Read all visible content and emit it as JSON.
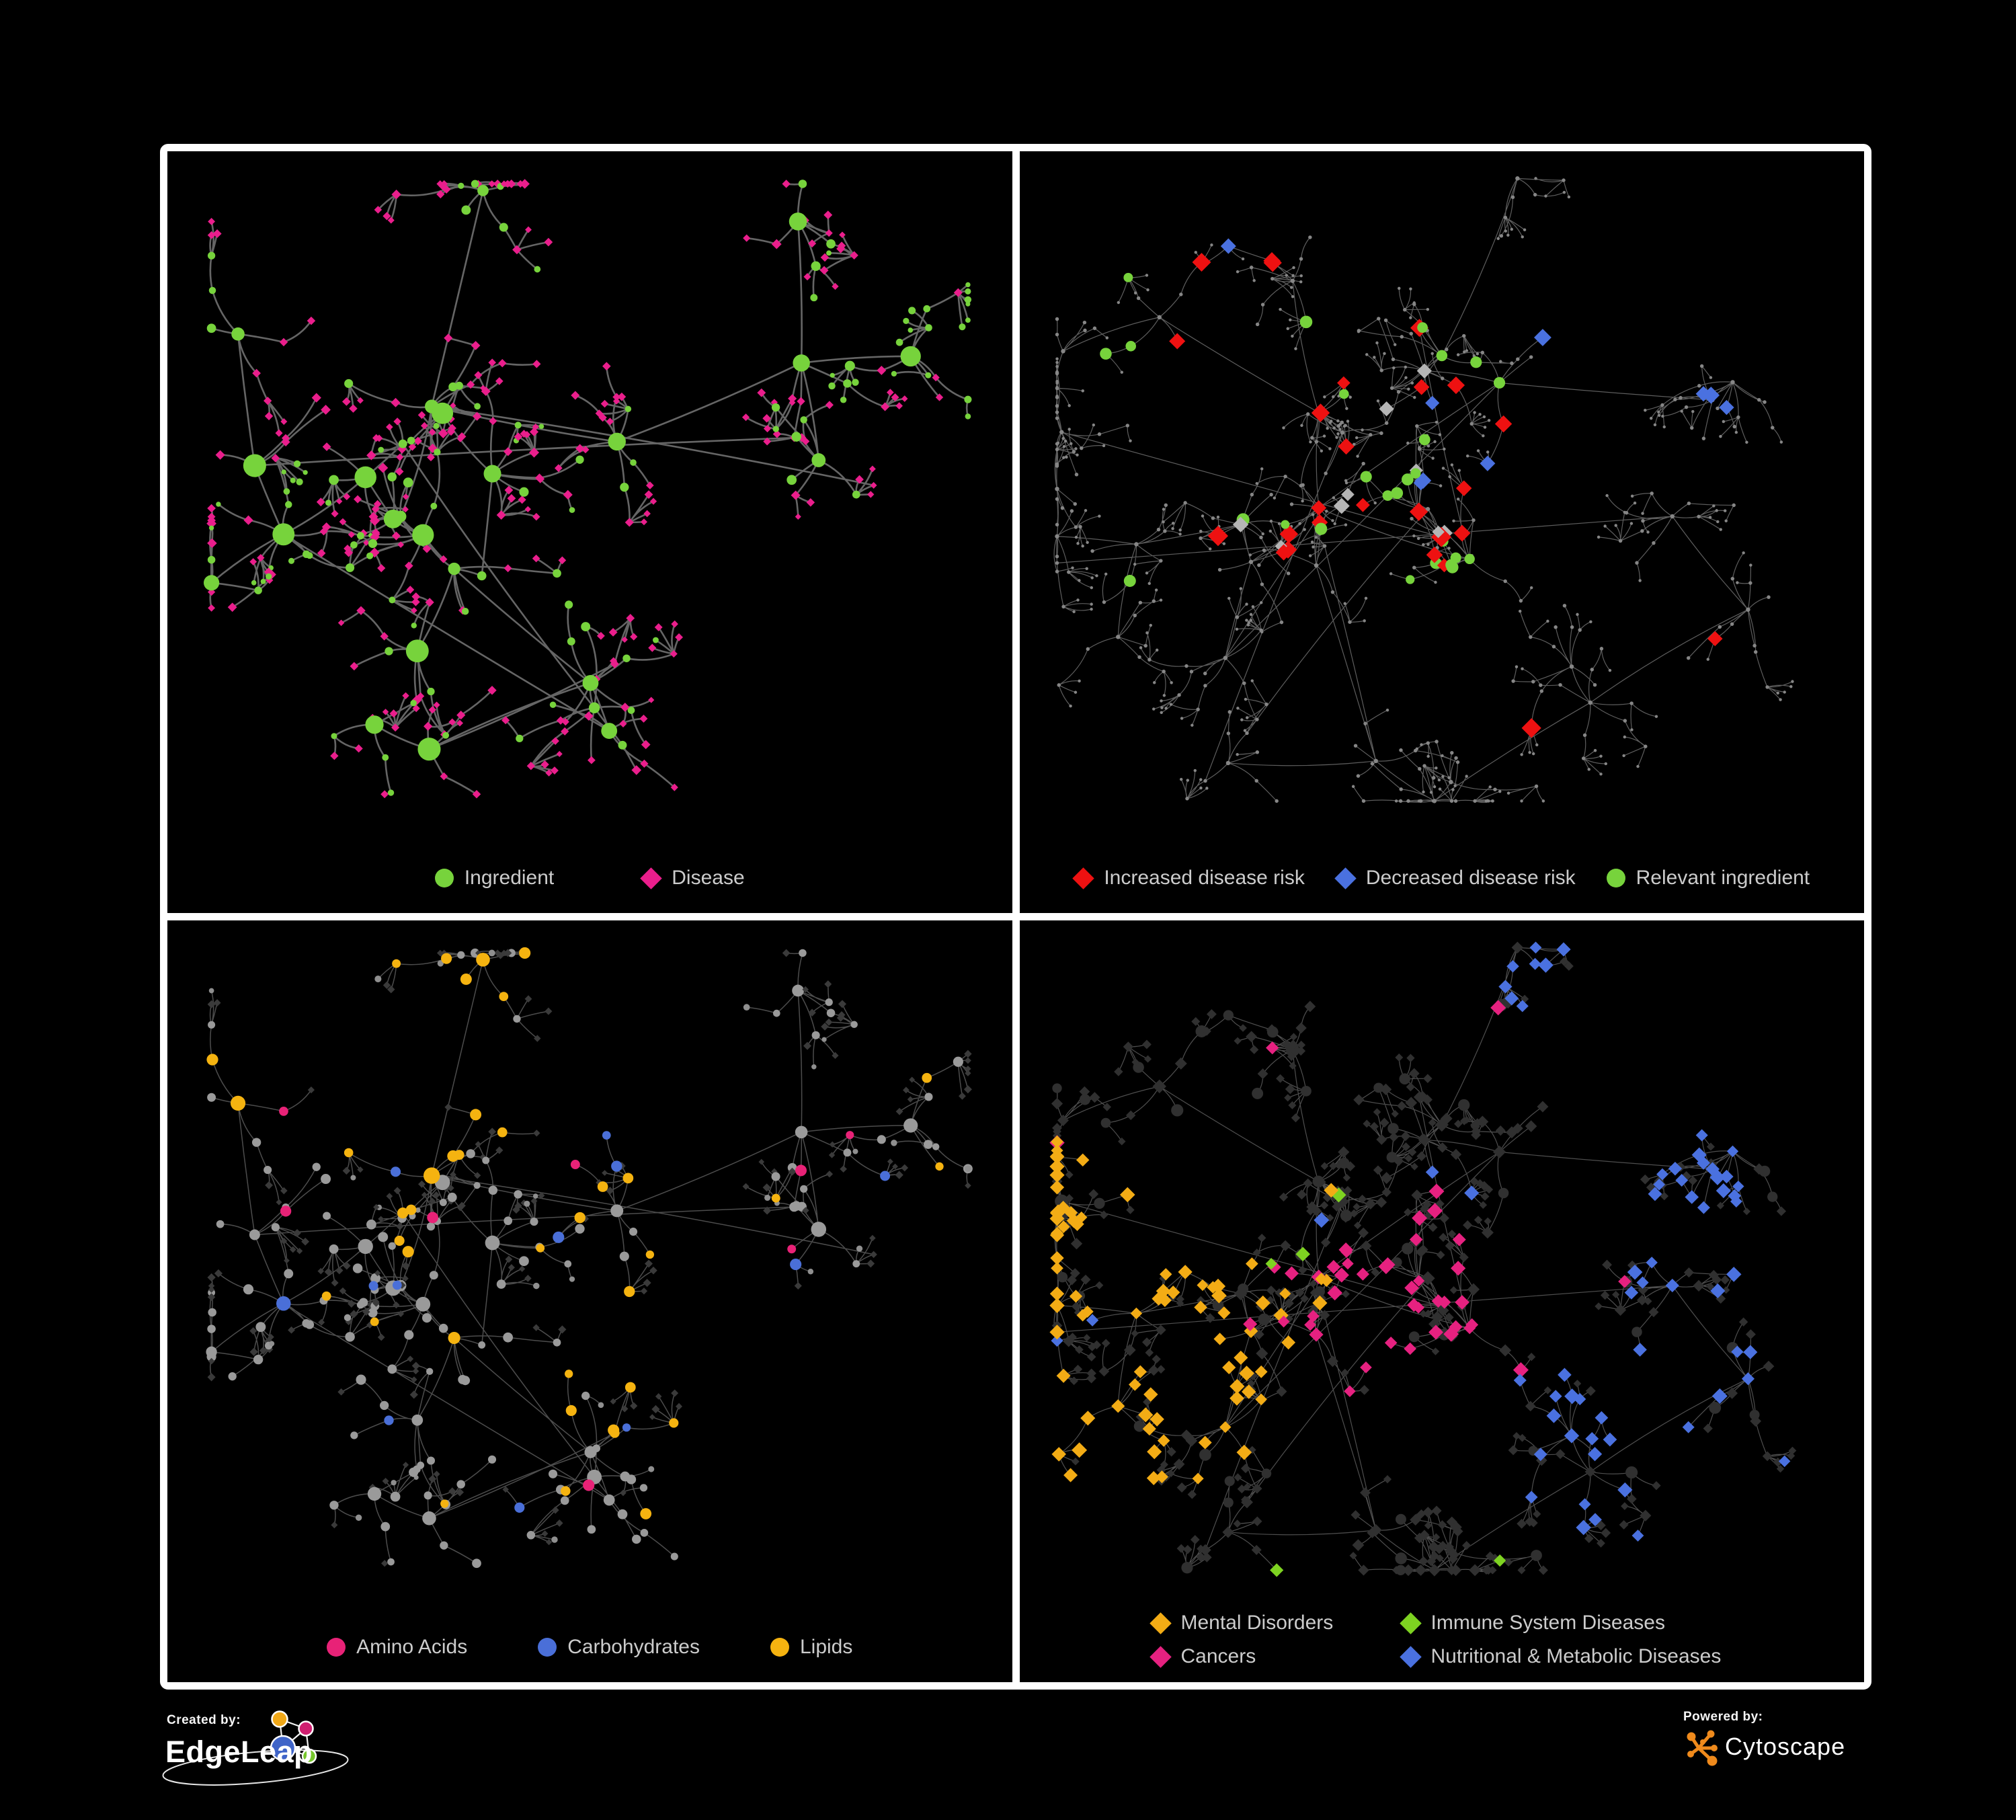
{
  "figure": {
    "background": "#000000",
    "frame_color": "#ffffff",
    "legend_text_color": "#cccccc"
  },
  "panels": [
    {
      "name": "ingredient-disease-network",
      "legend": [
        {
          "label": "Ingredient",
          "shape": "circle",
          "color": "#77d33c"
        },
        {
          "label": "Disease",
          "shape": "diamond",
          "color": "#ea1e8c"
        }
      ],
      "network": {
        "seed": 101,
        "layout": "A",
        "node_colors": {
          "ingredient": "#77d33c",
          "disease": "#ea1e8c"
        },
        "edge_color": "#6a6a6a",
        "edge_width": 2.6
      }
    },
    {
      "name": "disease-risk-network",
      "legend": [
        {
          "label": "Increased disease risk",
          "shape": "diamond",
          "color": "#ee1111"
        },
        {
          "label": "Decreased disease risk",
          "shape": "diamond",
          "color": "#4a71e0"
        },
        {
          "label": "Relevant ingredient",
          "shape": "circle",
          "color": "#77d33c"
        }
      ],
      "network": {
        "seed": 202,
        "layout": "B",
        "node_colors": {
          "increased": "#ee1111",
          "decreased": "#4a71e0",
          "other_disease": "#b5b5b5",
          "relevant": "#77d33c",
          "base": "#868686"
        },
        "edge_color": "#6d6d6d",
        "edge_width": 1.2,
        "counts": {
          "increased": 26,
          "decreased": 9,
          "other_disease": 9,
          "relevant": 26
        }
      }
    },
    {
      "name": "ingredient-classes-network",
      "legend": [
        {
          "label": "Amino Acids",
          "shape": "circle",
          "color": "#e82277"
        },
        {
          "label": "Carbohydrates",
          "shape": "circle",
          "color": "#4a6fd8"
        },
        {
          "label": "Lipids",
          "shape": "circle",
          "color": "#f5b310"
        }
      ],
      "network": {
        "seed": 101,
        "layout": "A",
        "node_colors": {
          "amino_acids": "#e82277",
          "carbohydrates": "#4a6fd8",
          "lipids": "#f5b310",
          "other_ingredient": "#9a9a9a",
          "disease": "#3a3a3a"
        },
        "edge_color": "#575757",
        "edge_width": 1.5
      }
    },
    {
      "name": "disease-classes-network",
      "legend": [
        {
          "label": "Mental Disorders",
          "shape": "diamond",
          "color": "#f3ac15"
        },
        {
          "label": "Immune System Diseases",
          "shape": "diamond",
          "color": "#7ed321"
        },
        {
          "label": "Cancers",
          "shape": "diamond",
          "color": "#e62180"
        },
        {
          "label": "Nutritional & Metabolic Diseases",
          "shape": "diamond",
          "color": "#4a71e0"
        }
      ],
      "network": {
        "seed": 202,
        "layout": "B",
        "node_colors": {
          "mental": "#f3ac15",
          "immune": "#7ed321",
          "cancers": "#e62180",
          "nutritional": "#4a71e0",
          "base": "#303030"
        },
        "edge_color": "#5c5c5c",
        "edge_width": 1.2
      }
    }
  ],
  "footer": {
    "created_by_label": "Created by:",
    "created_by_name": "EdgeLeap",
    "powered_by_label": "Powered by:",
    "powered_by_name": "Cytoscape",
    "edgeleap_logo_colors": {
      "amber": "#f0a818",
      "magenta": "#cf1f70",
      "blue": "#3f64c8",
      "green": "#76c62c"
    },
    "cytoscape_logo_color": "#ef8a1c"
  }
}
